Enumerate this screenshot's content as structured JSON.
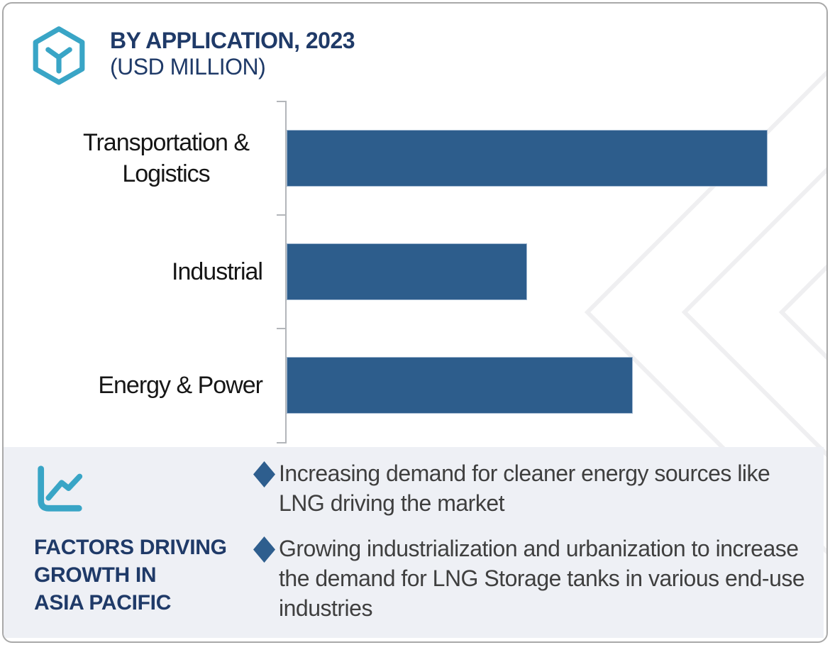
{
  "chart_data": {
    "type": "bar",
    "orientation": "horizontal",
    "title": "BY APPLICATION, 2023",
    "subtitle": "(USD MILLION)",
    "categories": [
      "Transportation & Logistics",
      "Industrial",
      "Energy & Power"
    ],
    "series": [
      {
        "name": "Market size by application, 2023 (USD Million)",
        "values_relative_to_max_pct": [
          100,
          50,
          72
        ]
      }
    ],
    "value_axis": {
      "labels_visible": false,
      "note": "No numeric scale or data labels shown in the chart; bar lengths estimated as percent of the longest bar (Transportation & Logistics = 100)"
    },
    "grid": false,
    "legend": false,
    "bar_color": "#2d5d8c"
  },
  "header": {
    "logo_icon": "hexagon-cube-y-logo"
  },
  "factors_panel": {
    "icon": "trend-line-chart",
    "heading": "FACTORS DRIVING GROWTH IN ASIA PACIFIC",
    "heading_lines": [
      "FACTORS DRIVING",
      "GROWTH IN",
      "ASIA PACIFIC"
    ],
    "bullet_icon": "diamond-bullet",
    "bullets": [
      "Increasing demand for cleaner energy sources like LNG driving the market",
      "Growing industrialization and urbanization to increase the demand for LNG Storage tanks in various end-use industries"
    ]
  },
  "colors": {
    "accent_teal": "#39a5c6",
    "navy": "#1f3a68",
    "bar_blue": "#2d5d8c",
    "diamond_blue": "#2e5e8e",
    "panel_bg": "#eef0f5",
    "text_dark": "#3f3f3f",
    "axis_gray": "#b3b6ba",
    "frame_border": "#a9a9a9",
    "watermark": "#efeff1"
  }
}
